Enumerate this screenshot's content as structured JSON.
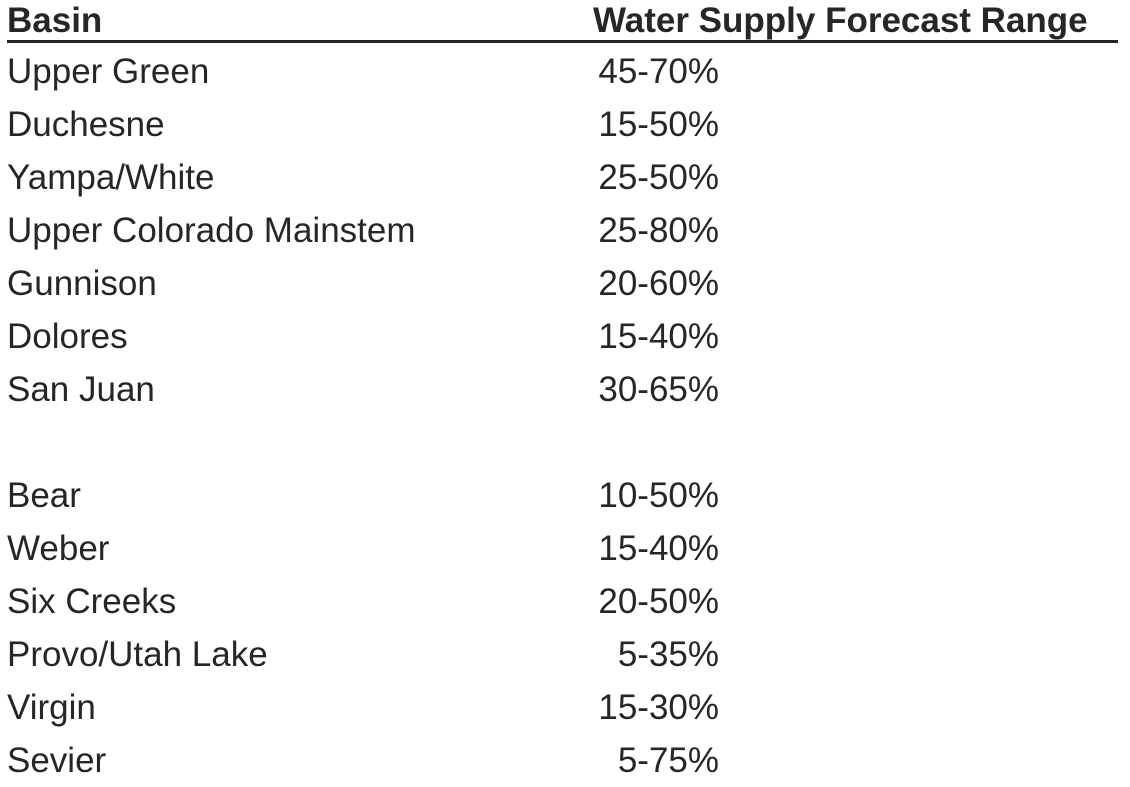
{
  "meta": {
    "background_color": "#ffffff",
    "text_color": "#262626"
  },
  "chart_data": {
    "type": "table",
    "columns": [
      "Basin",
      "Water Supply Forecast Range"
    ],
    "unit": "%",
    "groups": [
      {
        "rows": [
          {
            "basin": "Upper Green",
            "range": "45-70%",
            "min_pct": 45,
            "max_pct": 70
          },
          {
            "basin": "Duchesne",
            "range": "15-50%",
            "min_pct": 15,
            "max_pct": 50
          },
          {
            "basin": "Yampa/White",
            "range": "25-50%",
            "min_pct": 25,
            "max_pct": 50
          },
          {
            "basin": "Upper Colorado Mainstem",
            "range": "25-80%",
            "min_pct": 25,
            "max_pct": 80
          },
          {
            "basin": "Gunnison",
            "range": "20-60%",
            "min_pct": 20,
            "max_pct": 60
          },
          {
            "basin": "Dolores",
            "range": "15-40%",
            "min_pct": 15,
            "max_pct": 40
          },
          {
            "basin": "San Juan",
            "range": "30-65%",
            "min_pct": 30,
            "max_pct": 65
          }
        ]
      },
      {
        "rows": [
          {
            "basin": "Bear",
            "range": "10-50%",
            "min_pct": 10,
            "max_pct": 50
          },
          {
            "basin": "Weber",
            "range": "15-40%",
            "min_pct": 15,
            "max_pct": 40
          },
          {
            "basin": "Six Creeks",
            "range": "20-50%",
            "min_pct": 20,
            "max_pct": 50
          },
          {
            "basin": "Provo/Utah Lake",
            "range": "5-35%",
            "min_pct": 5,
            "max_pct": 35
          },
          {
            "basin": "Virgin",
            "range": "15-30%",
            "min_pct": 15,
            "max_pct": 30
          },
          {
            "basin": "Sevier",
            "range": "5-75%",
            "min_pct": 5,
            "max_pct": 75
          }
        ]
      }
    ]
  }
}
